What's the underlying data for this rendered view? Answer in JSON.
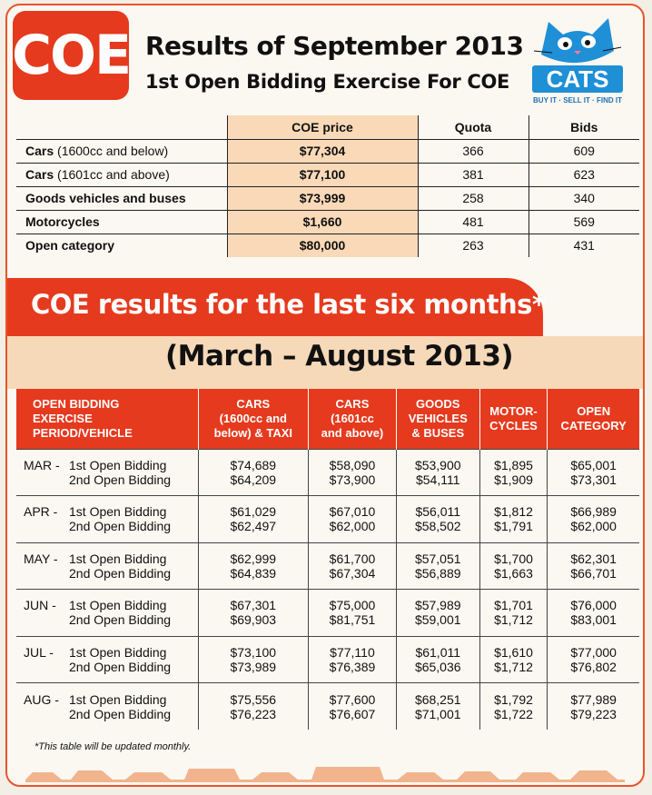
{
  "header": {
    "badge": "COE",
    "title": "Results of September 2013",
    "subtitle": "1st Open Bidding Exercise For COE",
    "logo_word": "CATS",
    "logo_tagline": "BUY IT · SELL IT · FIND IT"
  },
  "current": {
    "columns": [
      "",
      "COE price",
      "Quota",
      "Bids"
    ],
    "rows": [
      {
        "category_bold": "Cars",
        "category_rest": " (1600cc and below)",
        "price": "$77,304",
        "quota": "366",
        "bids": "609"
      },
      {
        "category_bold": "Cars",
        "category_rest": " (1601cc and above)",
        "price": "$77,100",
        "quota": "381",
        "bids": "623"
      },
      {
        "category_bold": "Goods vehicles and buses",
        "category_rest": "",
        "price": "$73,999",
        "quota": "258",
        "bids": "340"
      },
      {
        "category_bold": "Motorcycles",
        "category_rest": "",
        "price": "$1,660",
        "quota": "481",
        "bids": "569"
      },
      {
        "category_bold": "Open category",
        "category_rest": "",
        "price": "$80,000",
        "quota": "263",
        "bids": "431"
      }
    ]
  },
  "six_months": {
    "banner": "COE results for the last six months*",
    "period": "(March – August 2013)",
    "headers": [
      [
        "OPEN BIDDING",
        "EXERCISE",
        "PERIOD/VEHICLE"
      ],
      [
        "CARS",
        "(1600cc and",
        "below) & TAXI"
      ],
      [
        "CARS",
        "(1601cc",
        "and above)"
      ],
      [
        "GOODS",
        "VEHICLES",
        "& BUSES"
      ],
      [
        "MOTOR-",
        "CYCLES"
      ],
      [
        "OPEN",
        "CATEGORY"
      ]
    ],
    "round1_label": "1st Open Bidding",
    "round2_label": "2nd Open Bidding",
    "rows": [
      {
        "month": "MAR -",
        "values": [
          [
            "$74,689",
            "$64,209"
          ],
          [
            "$58,090",
            "$73,900"
          ],
          [
            "$53,900",
            "$54,111"
          ],
          [
            "$1,895",
            "$1,909"
          ],
          [
            "$65,001",
            "$73,301"
          ]
        ]
      },
      {
        "month": "APR -",
        "values": [
          [
            "$61,029",
            "$62,497"
          ],
          [
            "$67,010",
            "$62,000"
          ],
          [
            "$56,011",
            "$58,502"
          ],
          [
            "$1,812",
            "$1,791"
          ],
          [
            "$66,989",
            "$62,000"
          ]
        ]
      },
      {
        "month": "MAY -",
        "values": [
          [
            "$62,999",
            "$64,839"
          ],
          [
            "$61,700",
            "$67,304"
          ],
          [
            "$57,051",
            "$56,889"
          ],
          [
            "$1,700",
            "$1,663"
          ],
          [
            "$62,301",
            "$66,701"
          ]
        ]
      },
      {
        "month": "JUN -",
        "values": [
          [
            "$67,301",
            "$69,903"
          ],
          [
            "$75,000",
            "$81,751"
          ],
          [
            "$57,989",
            "$59,001"
          ],
          [
            "$1,701",
            "$1,712"
          ],
          [
            "$76,000",
            "$83,001"
          ]
        ]
      },
      {
        "month": "JUL -",
        "values": [
          [
            "$73,100",
            "$73,989"
          ],
          [
            "$77,110",
            "$76,389"
          ],
          [
            "$61,011",
            "$65,036"
          ],
          [
            "$1,610",
            "$1,712"
          ],
          [
            "$77,000",
            "$76,802"
          ]
        ]
      },
      {
        "month": "AUG -",
        "values": [
          [
            "$75,556",
            "$76,223"
          ],
          [
            "$77,600",
            "$76,607"
          ],
          [
            "$68,251",
            "$71,001"
          ],
          [
            "$1,792",
            "$1,722"
          ],
          [
            "$77,989",
            "$79,223"
          ]
        ]
      }
    ],
    "footnote": "*This table will be updated monthly."
  },
  "colors": {
    "accent_red": "#e53a1e",
    "price_band": "#f9d9b7",
    "period_band": "#f6d9b8",
    "logo_blue": "#1f8fd6"
  },
  "icons": {
    "logo": "cat-face-icon"
  }
}
